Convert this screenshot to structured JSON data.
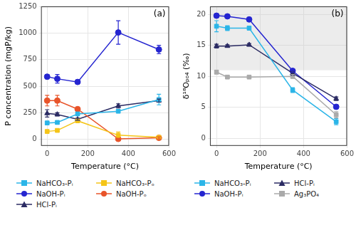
{
  "chart_data": [
    {
      "type": "line",
      "title": "(a)",
      "x_label": "Temperature (°C)",
      "y_label": "P concentration (mgP/kg)",
      "x": [
        0,
        50,
        150,
        350,
        550
      ],
      "xlim": [
        -30,
        600
      ],
      "xticks": [
        0,
        200,
        400,
        600
      ],
      "ylim": [
        -60,
        1250
      ],
      "yticks": [
        0,
        250,
        500,
        750,
        1000,
        1250
      ],
      "grid": true,
      "legend": "bottom",
      "series": [
        {
          "name": "NaHCO₃-Pᵢ",
          "color": "#2bb5e8",
          "marker": "square",
          "values": [
            155,
            160,
            240,
            265,
            375
          ],
          "errors": [
            15,
            15,
            15,
            15,
            50
          ]
        },
        {
          "name": "NaHCO₃-Pₒ",
          "color": "#f5c518",
          "marker": "square",
          "values": [
            75,
            85,
            175,
            40,
            20
          ],
          "errors": [
            10,
            10,
            10,
            30,
            10
          ]
        },
        {
          "name": "NaOH-Pᵢ",
          "color": "#2525d0",
          "marker": "circle",
          "values": [
            590,
            570,
            540,
            1005,
            845
          ],
          "errors": [
            20,
            40,
            10,
            110,
            40
          ]
        },
        {
          "name": "NaOH-Pₒ",
          "color": "#e8542a",
          "marker": "circle",
          "values": [
            365,
            365,
            285,
            5,
            15
          ],
          "errors": [
            50,
            50,
            15,
            5,
            10
          ]
        },
        {
          "name": "HCl-Pᵢ",
          "color": "#2b2b63",
          "marker": "triangle",
          "values": [
            245,
            235,
            190,
            315,
            365
          ],
          "errors": [
            35,
            15,
            10,
            20,
            15
          ]
        }
      ]
    },
    {
      "type": "line",
      "title": "(b)",
      "x_label": "Temperature (°C)",
      "y_label": "δ¹⁸Oₚₒ₄ (‰)",
      "x": [
        0,
        50,
        150,
        350,
        550
      ],
      "xlim": [
        -30,
        600
      ],
      "xticks": [
        0,
        200,
        400,
        600
      ],
      "ylim": [
        -1.2,
        21.3
      ],
      "yticks": [
        0,
        5,
        10,
        15,
        20
      ],
      "band": [
        11,
        21.3
      ],
      "grid": true,
      "legend": "bottom",
      "series": [
        {
          "name": "NaHCO₃-Pᵢ",
          "color": "#2bb5e8",
          "marker": "square",
          "values": [
            18.1,
            17.8,
            17.8,
            7.8,
            2.7
          ],
          "errors": [
            0.9,
            0.4,
            0.3,
            0.4,
            0.5
          ]
        },
        {
          "name": "HCl-Pᵢ",
          "color": "#2b2b63",
          "marker": "triangle",
          "values": [
            14.9,
            14.9,
            15.1,
            10.5,
            6.4
          ],
          "errors": [
            0.3,
            0.2,
            0.2,
            0.3,
            0.3
          ]
        },
        {
          "name": "NaOH-Pᵢ",
          "color": "#2525d0",
          "marker": "circle",
          "values": [
            19.8,
            19.7,
            19.2,
            10.9,
            5.1
          ],
          "errors": [
            0.2,
            0.2,
            0.2,
            0.2,
            0.3
          ]
        },
        {
          "name": "Ag₃PO₄",
          "color": "#aaaaaa",
          "marker": "square",
          "values": [
            10.7,
            9.9,
            9.9,
            10.0,
            3.8
          ],
          "errors": [
            0.3,
            0.2,
            0.2,
            0.3,
            0.5
          ]
        }
      ]
    }
  ]
}
